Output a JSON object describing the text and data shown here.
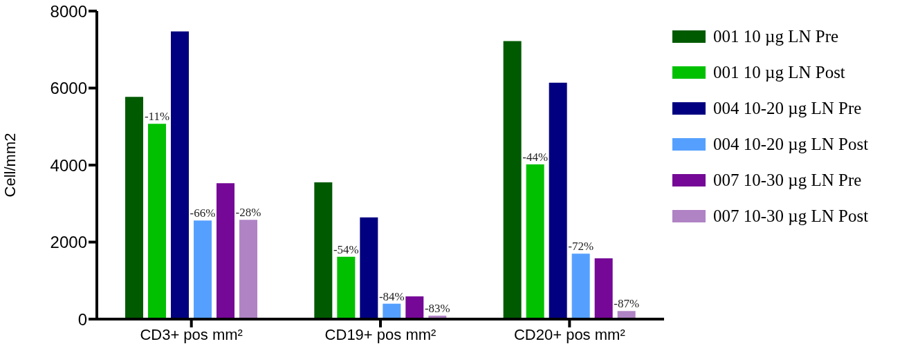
{
  "chart_data": {
    "type": "bar",
    "ylabel": "Cell/mm2",
    "categories": [
      "CD3+ pos mm²",
      "CD19+ pos mm²",
      "CD20+ pos mm²"
    ],
    "series": [
      {
        "name": "001 10 µg LN Pre",
        "color": "#005a00",
        "values": [
          5770,
          3550,
          7220
        ]
      },
      {
        "name": "001 10 µg LN Post",
        "color": "#00c000",
        "values": [
          5070,
          1620,
          4020
        ]
      },
      {
        "name": "004 10-20 µg LN Pre",
        "color": "#000080",
        "values": [
          7470,
          2640,
          6140
        ]
      },
      {
        "name": "004 10-20 µg LN Post",
        "color": "#55a0ff",
        "values": [
          2560,
          400,
          1700
        ]
      },
      {
        "name": "007 10-30 µg LN Pre",
        "color": "#750896",
        "values": [
          3530,
          590,
          1580
        ]
      },
      {
        "name": "007 10-30 µg LN Post",
        "color": "#b083c4",
        "values": [
          2580,
          90,
          210
        ]
      }
    ],
    "annotations": [
      "-11%",
      "-66%",
      "-28%",
      "-54%",
      "-84%",
      "-83%",
      "-44%",
      "-72%",
      "-87%"
    ],
    "ylim": [
      0,
      8000
    ],
    "yticks": [
      0,
      2000,
      4000,
      6000,
      8000
    ],
    "grid": false,
    "legend": "right"
  }
}
